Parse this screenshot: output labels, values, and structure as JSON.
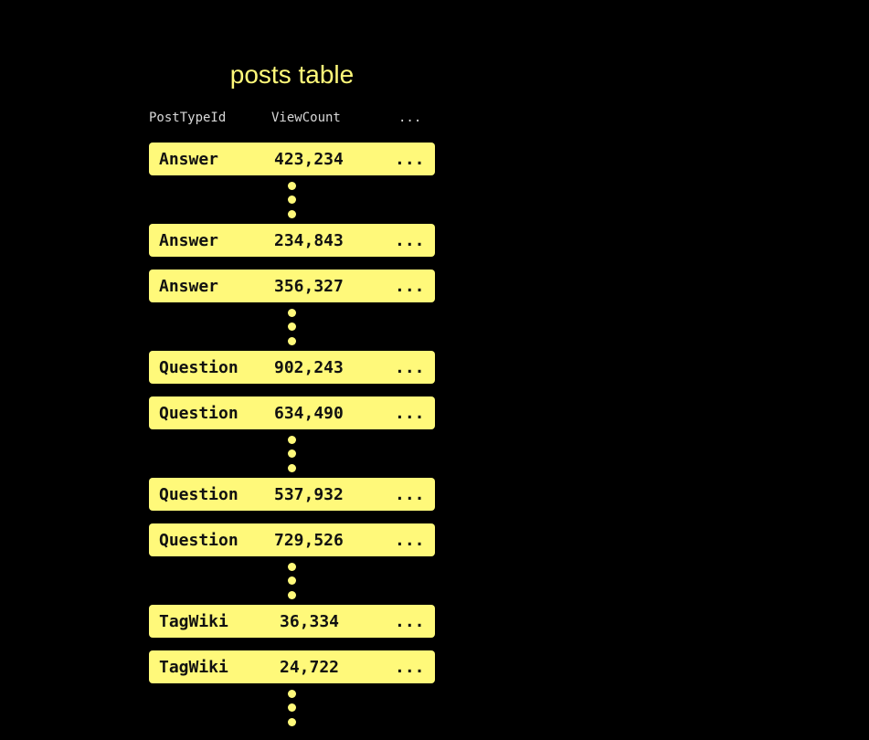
{
  "title": "posts table",
  "headers": [
    "PostTypeId",
    "ViewCount",
    "..."
  ],
  "rows": [
    {
      "type": "Answer",
      "views": "423,234",
      "more": "..."
    },
    {
      "type": "Answer",
      "views": "234,843",
      "more": "..."
    },
    {
      "type": "Answer",
      "views": "356,327",
      "more": "..."
    },
    {
      "type": "Question",
      "views": "902,243",
      "more": "..."
    },
    {
      "type": "Question",
      "views": "634,490",
      "more": "..."
    },
    {
      "type": "Question",
      "views": "537,932",
      "more": "..."
    },
    {
      "type": "Question",
      "views": "729,526",
      "more": "..."
    },
    {
      "type": "TagWiki",
      "views": "36,334",
      "more": "..."
    },
    {
      "type": "TagWiki",
      "views": "24,722",
      "more": "..."
    }
  ],
  "colors": {
    "accent": "#fff97a",
    "background": "#000000"
  }
}
